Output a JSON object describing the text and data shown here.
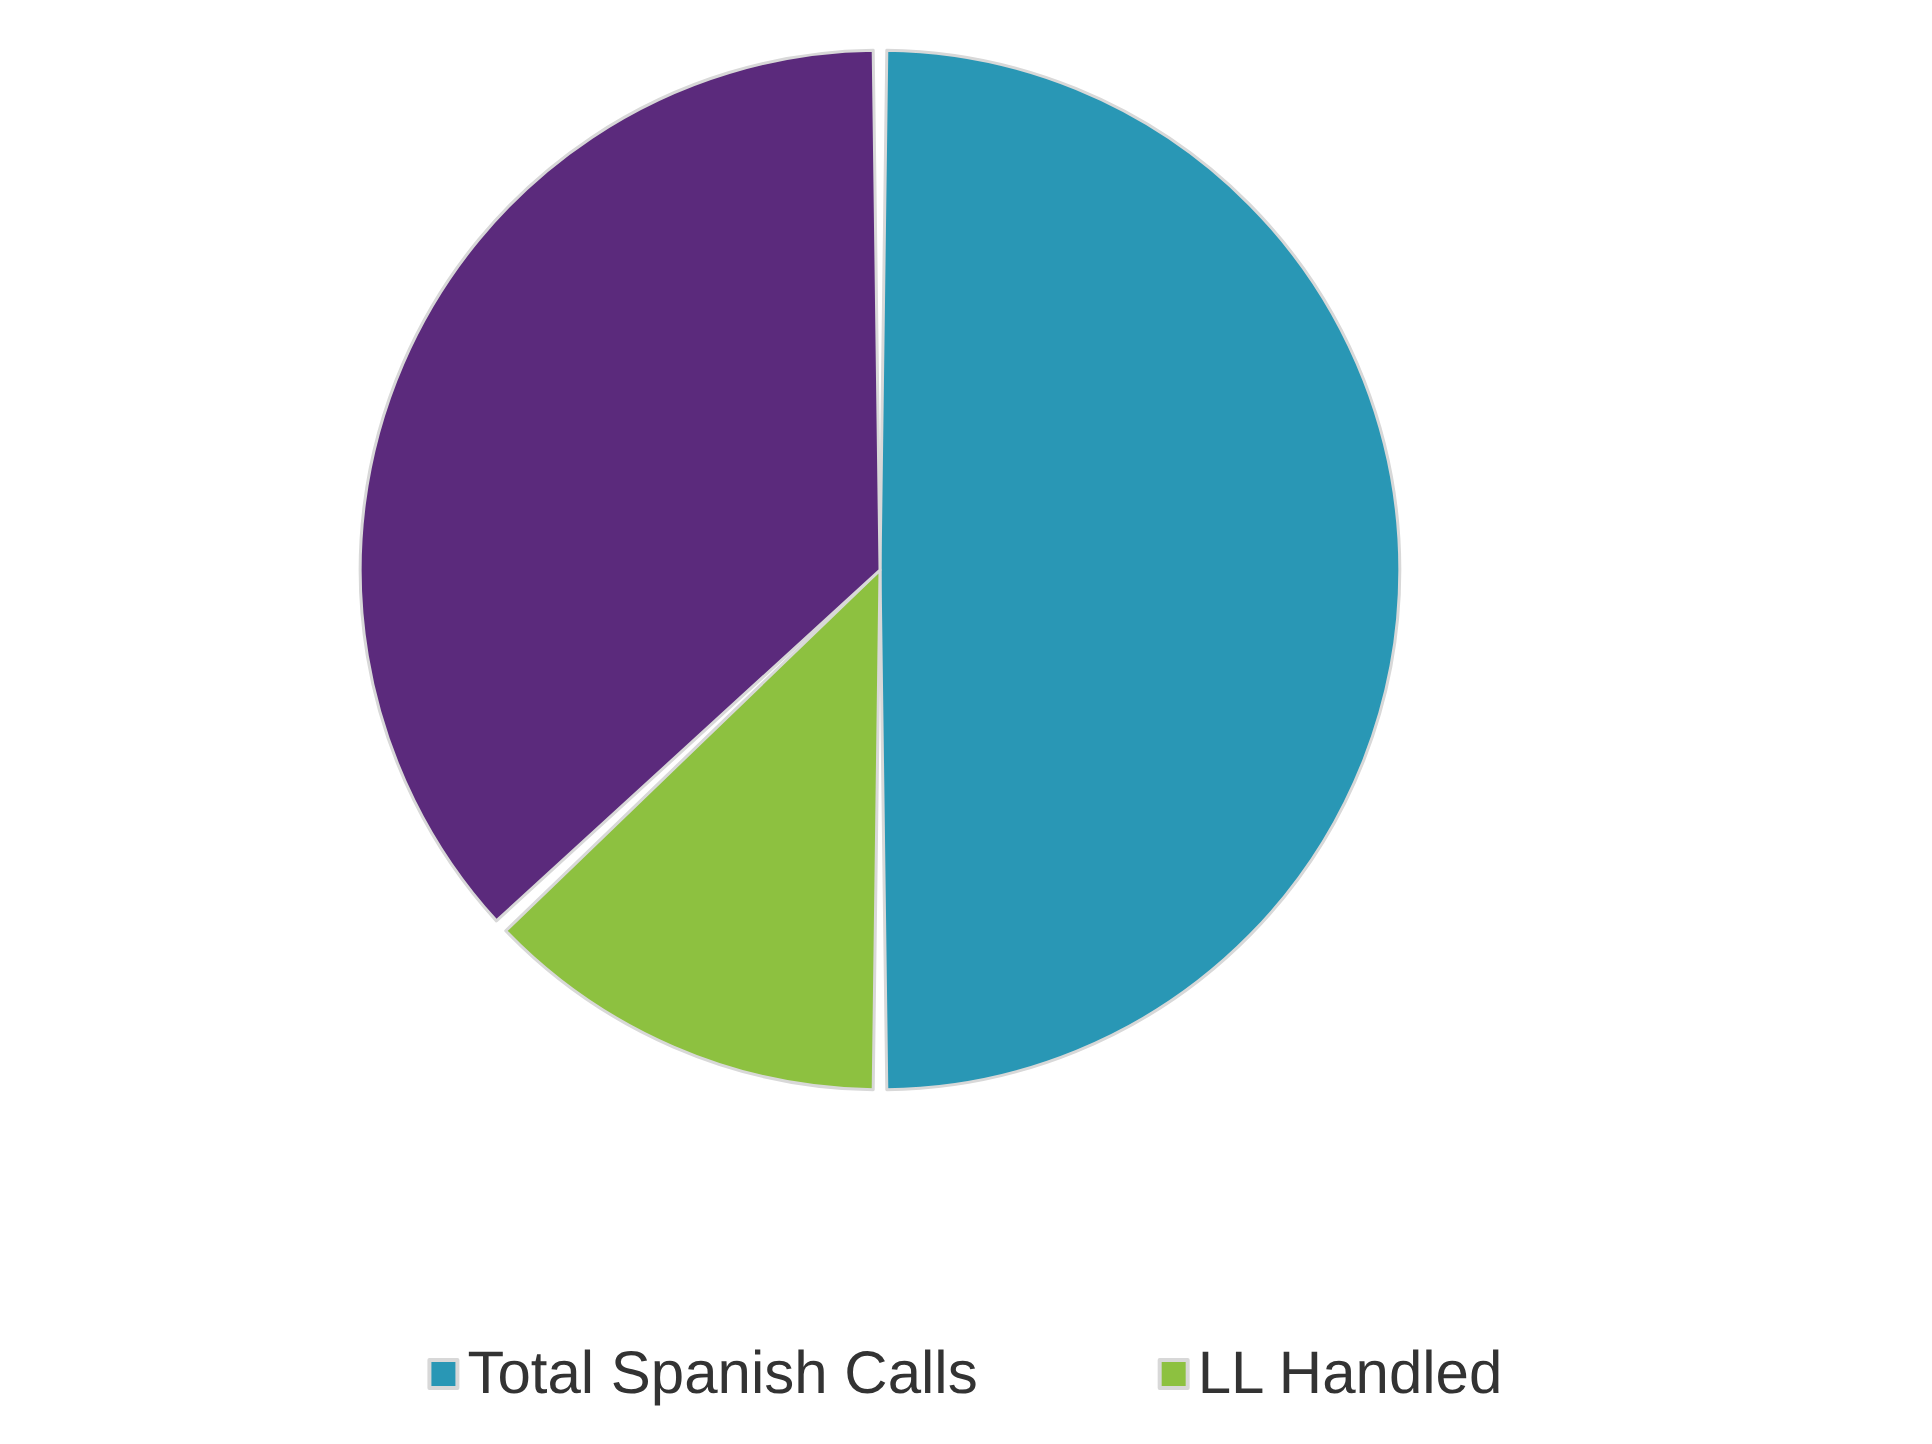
{
  "chart_data": {
    "type": "pie",
    "categories": [
      "Total Spanish Calls",
      "LL Handled",
      null
    ],
    "values": [
      50,
      13,
      37
    ],
    "colors": [
      "#2997b5",
      "#8dc140",
      "#5b2a7c"
    ],
    "legend": "bottom"
  }
}
